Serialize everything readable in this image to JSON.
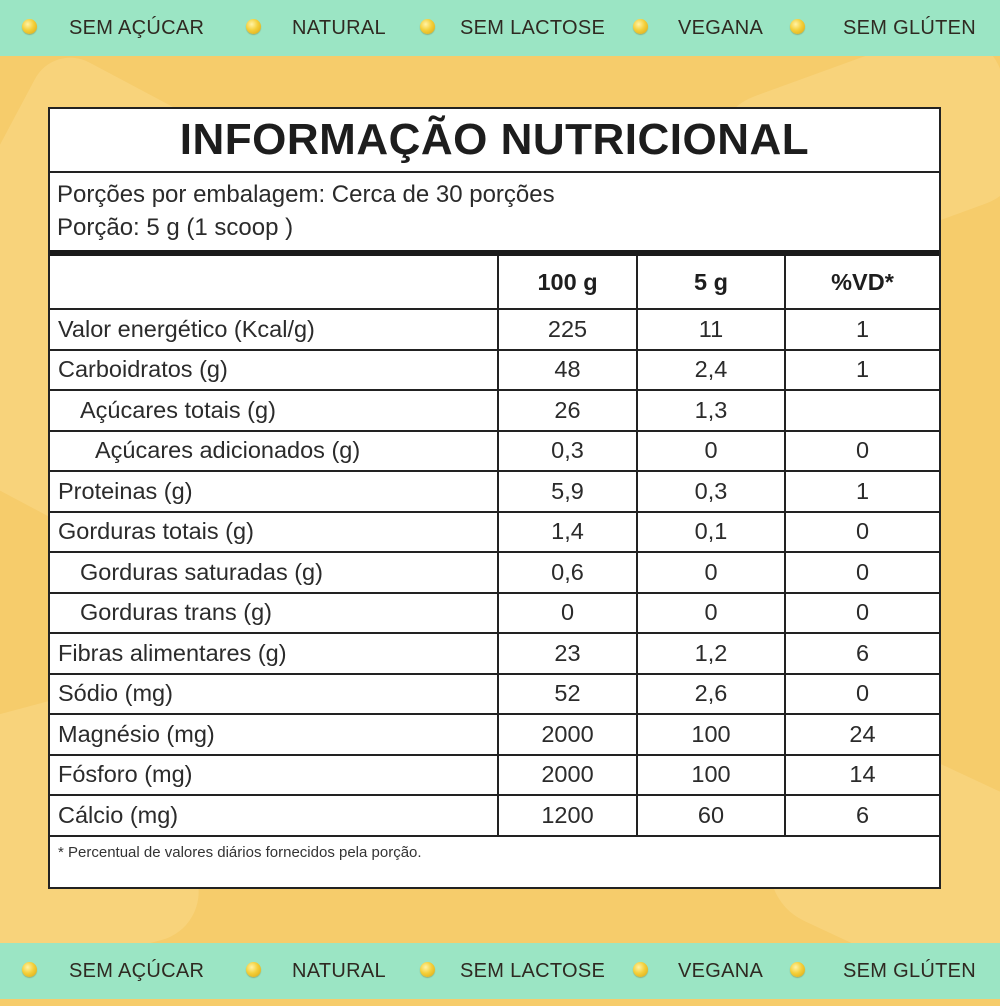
{
  "colors": {
    "background": "#f6cc6b",
    "strip": "#9be5c4",
    "panel": "#ffffff",
    "rule": "#1a1a1a"
  },
  "badges": [
    "SEM AÇÚCAR",
    "NATURAL",
    "SEM LACTOSE",
    "VEGANA",
    "SEM GLÚTEN"
  ],
  "badge_icon": "lemon-dot-icon",
  "label": {
    "title": "INFORMAÇÃO NUTRICIONAL",
    "servings": "Porções por embalagem: Cerca de 30 porções",
    "portion": "Porção: 5 g (1 scoop )",
    "headers": [
      "",
      "100 g",
      "5 g",
      "%VD*"
    ],
    "rows": [
      {
        "name": "Valor energético (Kcal/g)",
        "indent": 0,
        "per100": "225",
        "per5": "11",
        "vd": "1"
      },
      {
        "name": "Carboidratos (g)",
        "indent": 0,
        "per100": "48",
        "per5": "2,4",
        "vd": "1"
      },
      {
        "name": "Açúcares totais (g)",
        "indent": 1,
        "per100": "26",
        "per5": "1,3",
        "vd": ""
      },
      {
        "name": "Açúcares adicionados (g)",
        "indent": 2,
        "per100": "0,3",
        "per5": "0",
        "vd": "0"
      },
      {
        "name": "Proteinas (g)",
        "indent": 0,
        "per100": "5,9",
        "per5": "0,3",
        "vd": "1"
      },
      {
        "name": "Gorduras totais (g)",
        "indent": 0,
        "per100": "1,4",
        "per5": "0,1",
        "vd": "0"
      },
      {
        "name": "Gorduras saturadas (g)",
        "indent": 1,
        "per100": "0,6",
        "per5": "0",
        "vd": "0"
      },
      {
        "name": "Gorduras trans (g)",
        "indent": 1,
        "per100": "0",
        "per5": "0",
        "vd": "0"
      },
      {
        "name": "Fibras alimentares (g)",
        "indent": 0,
        "per100": "23",
        "per5": "1,2",
        "vd": "6"
      },
      {
        "name": "Sódio (mg)",
        "indent": 0,
        "per100": "52",
        "per5": "2,6",
        "vd": "0"
      },
      {
        "name": "Magnésio (mg)",
        "indent": 0,
        "per100": "2000",
        "per5": "100",
        "vd": "24"
      },
      {
        "name": "Fósforo (mg)",
        "indent": 0,
        "per100": "2000",
        "per5": "100",
        "vd": "14"
      },
      {
        "name": "Cálcio (mg)",
        "indent": 0,
        "per100": "1200",
        "per5": "60",
        "vd": "6"
      }
    ],
    "footnote": "* Percentual de valores diários fornecidos pela porção."
  }
}
